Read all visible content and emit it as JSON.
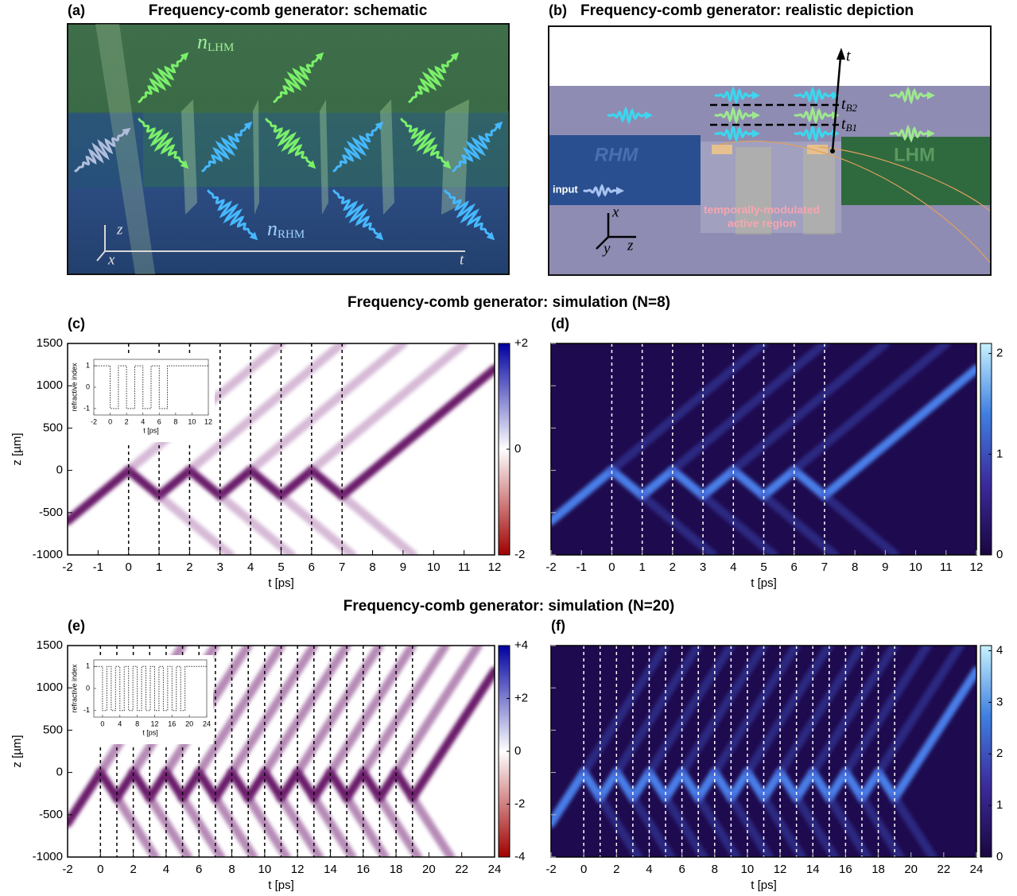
{
  "panel_a": {
    "label": "(a)",
    "title": "Frequency-comb generator: schematic",
    "n_lhm": {
      "symbol": "n",
      "subscript": "LHM"
    },
    "n_rhm": {
      "symbol": "n",
      "subscript": "RHM"
    },
    "axes": {
      "z": "z",
      "x": "x",
      "t": "t"
    }
  },
  "panel_b": {
    "label": "(b)",
    "title": "Frequency-comb generator: realistic depiction",
    "time_axis": "t",
    "t_b2": {
      "symbol": "t",
      "subscript": "B2"
    },
    "t_b1": {
      "symbol": "t",
      "subscript": "B1"
    },
    "rhm": "RHM",
    "lhm": "LHM",
    "input": "input",
    "region": [
      "temporally-modulated",
      "active region"
    ],
    "axes": {
      "x": "x",
      "y": "y",
      "z": "z"
    }
  },
  "sections": [
    "Frequency-comb generator: simulation (N=8)",
    "Frequency-comb generator: simulation (N=20)"
  ],
  "chart_data": [
    {
      "type": "heatmap",
      "label": "(c)",
      "xlabel": "t [ps]",
      "ylabel": "z [µm]",
      "xlim": [
        -2,
        12
      ],
      "xticks": [
        -2,
        -1,
        0,
        1,
        2,
        3,
        4,
        5,
        6,
        7,
        8,
        9,
        10,
        11,
        12
      ],
      "ylim": [
        -1000,
        1500
      ],
      "yticks": [
        -1000,
        -500,
        0,
        500,
        1000,
        1500
      ],
      "ytick_labels": true,
      "background": "#ffffff",
      "colormap": [
        "#a00000",
        "#ffffff",
        "#0000a0"
      ],
      "zlim": [
        -2,
        2
      ],
      "zticks": [
        {
          "value": 2,
          "label": "+2"
        },
        0,
        -2
      ],
      "modulation_times": [
        0,
        1,
        2,
        3,
        4,
        5,
        6,
        7
      ],
      "modulation_color": "#000000",
      "series": [
        {
          "color": "#6a1b6a",
          "opacity": 1,
          "x": [
            -2,
            0,
            1,
            2,
            3,
            4,
            5,
            6,
            7,
            12
          ],
          "values": [
            -600,
            0,
            -300,
            0,
            -300,
            0,
            -300,
            0,
            -300,
            1200
          ]
        },
        {
          "color": "#8a3a8a",
          "opacity": 0.35,
          "x": [
            0,
            5,
            null,
            2,
            7,
            null,
            4,
            9,
            null,
            6,
            11
          ],
          "values": [
            0,
            1500,
            null,
            0,
            1500,
            null,
            0,
            1500,
            null,
            0,
            1500
          ]
        },
        {
          "color": "#8a3a8a",
          "opacity": 0.35,
          "x": [
            1,
            3.33,
            null,
            3,
            5.33,
            null,
            5,
            7.33,
            null,
            7,
            9.33
          ],
          "values": [
            -300,
            -1000,
            null,
            -300,
            -1000,
            null,
            -300,
            -1000,
            null,
            -300,
            -1000
          ]
        }
      ],
      "inset": {
        "type": "line",
        "xlabel": "t [ps]",
        "ylabel": "refractive index",
        "xlim": [
          -2,
          12
        ],
        "xticks": [
          -2,
          0,
          2,
          4,
          6,
          8,
          10,
          12
        ],
        "ylim": [
          -1.3,
          1.3
        ],
        "yticks": [
          -1,
          0,
          1
        ],
        "color": "#333333",
        "x": [
          -2,
          0,
          0,
          1,
          1,
          2,
          2,
          3,
          3,
          4,
          4,
          5,
          5,
          6,
          6,
          7,
          7,
          12
        ],
        "values": [
          1,
          1,
          -1,
          -1,
          1,
          1,
          -1,
          -1,
          1,
          1,
          -1,
          -1,
          1,
          1,
          -1,
          -1,
          1,
          1
        ]
      }
    },
    {
      "type": "heatmap",
      "label": "(d)",
      "xlabel": "t [ps]",
      "xlim": [
        -2,
        12
      ],
      "xticks": [
        -2,
        -1,
        0,
        1,
        2,
        3,
        4,
        5,
        6,
        7,
        8,
        9,
        10,
        11,
        12
      ],
      "ylim": [
        -1000,
        1500
      ],
      "yticks": [
        -1000,
        -500,
        0,
        500,
        1000,
        1500
      ],
      "ytick_labels": false,
      "background": "#1e0a4e",
      "colormap": [
        "#1a0640",
        "#3b2a9a",
        "#3f7fe0",
        "#c6f2ff"
      ],
      "zlim": [
        0,
        2.1
      ],
      "zticks": [
        0,
        1,
        2
      ],
      "modulation_times": [
        0,
        1,
        2,
        3,
        4,
        5,
        6,
        7
      ],
      "modulation_color": "#ffffff",
      "series": [
        {
          "color": "#4a7ee8",
          "opacity": 1,
          "x": [
            -2,
            0,
            1,
            2,
            3,
            4,
            5,
            6,
            7,
            12
          ],
          "values": [
            -600,
            0,
            -300,
            0,
            -300,
            0,
            -300,
            0,
            -300,
            1200
          ]
        },
        {
          "color": "#3e4fc0",
          "opacity": 0.45,
          "x": [
            0,
            5,
            null,
            2,
            7,
            null,
            4,
            9,
            null,
            6,
            11
          ],
          "values": [
            0,
            1500,
            null,
            0,
            1500,
            null,
            0,
            1500,
            null,
            0,
            1500
          ]
        },
        {
          "color": "#3e4fc0",
          "opacity": 0.45,
          "x": [
            1,
            3.33,
            null,
            3,
            5.33,
            null,
            5,
            7.33,
            null,
            7,
            9.33
          ],
          "values": [
            -300,
            -1000,
            null,
            -300,
            -1000,
            null,
            -300,
            -1000,
            null,
            -300,
            -1000
          ]
        }
      ]
    },
    {
      "type": "heatmap",
      "label": "(e)",
      "xlabel": "t [ps]",
      "ylabel": "z [µm]",
      "xlim": [
        -2,
        24
      ],
      "xticks": [
        -2,
        0,
        2,
        4,
        6,
        8,
        10,
        12,
        14,
        16,
        18,
        20,
        22,
        24
      ],
      "ylim": [
        -1000,
        1500
      ],
      "yticks": [
        -1000,
        -500,
        0,
        500,
        1000,
        1500
      ],
      "ytick_labels": true,
      "background": "#ffffff",
      "colormap": [
        "#a00000",
        "#ffffff",
        "#0000a0"
      ],
      "zlim": [
        -4,
        4
      ],
      "zticks": [
        {
          "value": 4,
          "label": "+4"
        },
        {
          "value": 2,
          "label": "+2"
        },
        0,
        -2,
        -4
      ],
      "modulation_times": [
        0,
        1,
        2,
        3,
        4,
        5,
        6,
        7,
        8,
        9,
        10,
        11,
        12,
        13,
        14,
        15,
        16,
        17,
        18,
        19
      ],
      "modulation_color": "#000000",
      "series": [
        {
          "color": "#6a1b6a",
          "opacity": 1,
          "x": [
            -2,
            0,
            1,
            2,
            3,
            4,
            5,
            6,
            7,
            8,
            9,
            10,
            11,
            12,
            13,
            14,
            15,
            16,
            17,
            18,
            19,
            24
          ],
          "values": [
            -600,
            0,
            -300,
            0,
            -300,
            0,
            -300,
            0,
            -300,
            0,
            -300,
            0,
            -300,
            0,
            -300,
            0,
            -300,
            0,
            -300,
            0,
            -300,
            1200
          ]
        },
        {
          "color": "#7a2a7a",
          "opacity": 0.55,
          "x": [
            0,
            5,
            null,
            2,
            7,
            null,
            4,
            9,
            null,
            6,
            11,
            null,
            8,
            13,
            null,
            10,
            15,
            null,
            12,
            17,
            null,
            14,
            19,
            null,
            16,
            21,
            null,
            18,
            23
          ],
          "values": [
            0,
            1500,
            null,
            0,
            1500,
            null,
            0,
            1500,
            null,
            0,
            1500,
            null,
            0,
            1500,
            null,
            0,
            1500,
            null,
            0,
            1500,
            null,
            0,
            1500,
            null,
            0,
            1500,
            null,
            0,
            1500
          ]
        },
        {
          "color": "#7a2a7a",
          "opacity": 0.55,
          "x": [
            1,
            3.33,
            null,
            3,
            5.33,
            null,
            5,
            7.33,
            null,
            7,
            9.33,
            null,
            9,
            11.33,
            null,
            11,
            13.33,
            null,
            13,
            15.33,
            null,
            15,
            17.33,
            null,
            17,
            19.33,
            null,
            19,
            21.33
          ],
          "values": [
            -300,
            -1000,
            null,
            -300,
            -1000,
            null,
            -300,
            -1000,
            null,
            -300,
            -1000,
            null,
            -300,
            -1000,
            null,
            -300,
            -1000,
            null,
            -300,
            -1000,
            null,
            -300,
            -1000,
            null,
            -300,
            -1000,
            null,
            -300,
            -1000
          ]
        }
      ],
      "inset": {
        "type": "line",
        "xlabel": "t [ps]",
        "ylabel": "refractive index",
        "xlim": [
          -2,
          24
        ],
        "xticks": [
          0,
          4,
          8,
          12,
          16,
          20,
          24
        ],
        "ylim": [
          -1.3,
          1.3
        ],
        "yticks": [
          -1,
          0,
          1
        ],
        "color": "#333333",
        "x": [
          -2,
          0,
          0,
          1,
          1,
          2,
          2,
          3,
          3,
          4,
          4,
          5,
          5,
          6,
          6,
          7,
          7,
          8,
          8,
          9,
          9,
          10,
          10,
          11,
          11,
          12,
          12,
          13,
          13,
          14,
          14,
          15,
          15,
          16,
          16,
          17,
          17,
          18,
          18,
          19,
          19,
          24
        ],
        "values": [
          1,
          1,
          -1,
          -1,
          1,
          1,
          -1,
          -1,
          1,
          1,
          -1,
          -1,
          1,
          1,
          -1,
          -1,
          1,
          1,
          -1,
          -1,
          1,
          1,
          -1,
          -1,
          1,
          1,
          -1,
          -1,
          1,
          1,
          -1,
          -1,
          1,
          1,
          -1,
          -1,
          1,
          1,
          -1,
          -1,
          1,
          1
        ]
      }
    },
    {
      "type": "heatmap",
      "label": "(f)",
      "xlabel": "t [ps]",
      "xlim": [
        -2,
        24
      ],
      "xticks": [
        -2,
        0,
        2,
        4,
        6,
        8,
        10,
        12,
        14,
        16,
        18,
        20,
        22,
        24
      ],
      "ylim": [
        -1000,
        1500
      ],
      "yticks": [
        -1000,
        -500,
        0,
        500,
        1000,
        1500
      ],
      "ytick_labels": false,
      "background": "#1e0a4e",
      "colormap": [
        "#1a0640",
        "#3b2a9a",
        "#3f7fe0",
        "#c6f2ff"
      ],
      "zlim": [
        0,
        4.1
      ],
      "zticks": [
        0,
        1,
        2,
        3,
        4
      ],
      "modulation_times": [
        0,
        1,
        2,
        3,
        4,
        5,
        6,
        7,
        8,
        9,
        10,
        11,
        12,
        13,
        14,
        15,
        16,
        17,
        18,
        19
      ],
      "modulation_color": "#ffffff",
      "series": [
        {
          "color": "#4a7ee8",
          "opacity": 1,
          "x": [
            -2,
            0,
            1,
            2,
            3,
            4,
            5,
            6,
            7,
            8,
            9,
            10,
            11,
            12,
            13,
            14,
            15,
            16,
            17,
            18,
            19,
            24
          ],
          "values": [
            -600,
            0,
            -300,
            0,
            -300,
            0,
            -300,
            0,
            -300,
            0,
            -300,
            0,
            -300,
            0,
            -300,
            0,
            -300,
            0,
            -300,
            0,
            -300,
            1200
          ]
        },
        {
          "color": "#3e4fc0",
          "opacity": 0.45,
          "x": [
            0,
            5,
            null,
            2,
            7,
            null,
            4,
            9,
            null,
            6,
            11,
            null,
            8,
            13,
            null,
            10,
            15,
            null,
            12,
            17,
            null,
            14,
            19,
            null,
            16,
            21,
            null,
            18,
            23
          ],
          "values": [
            0,
            1500,
            null,
            0,
            1500,
            null,
            0,
            1500,
            null,
            0,
            1500,
            null,
            0,
            1500,
            null,
            0,
            1500,
            null,
            0,
            1500,
            null,
            0,
            1500,
            null,
            0,
            1500,
            null,
            0,
            1500
          ]
        },
        {
          "color": "#3e4fc0",
          "opacity": 0.45,
          "x": [
            1,
            3.33,
            null,
            3,
            5.33,
            null,
            5,
            7.33,
            null,
            7,
            9.33,
            null,
            9,
            11.33,
            null,
            11,
            13.33,
            null,
            13,
            15.33,
            null,
            15,
            17.33,
            null,
            17,
            19.33,
            null,
            19,
            21.33
          ],
          "values": [
            -300,
            -1000,
            null,
            -300,
            -1000,
            null,
            -300,
            -1000,
            null,
            -300,
            -1000,
            null,
            -300,
            -1000,
            null,
            -300,
            -1000,
            null,
            -300,
            -1000,
            null,
            -300,
            -1000,
            null,
            -300,
            -1000,
            null,
            -300,
            -1000
          ]
        }
      ]
    }
  ]
}
